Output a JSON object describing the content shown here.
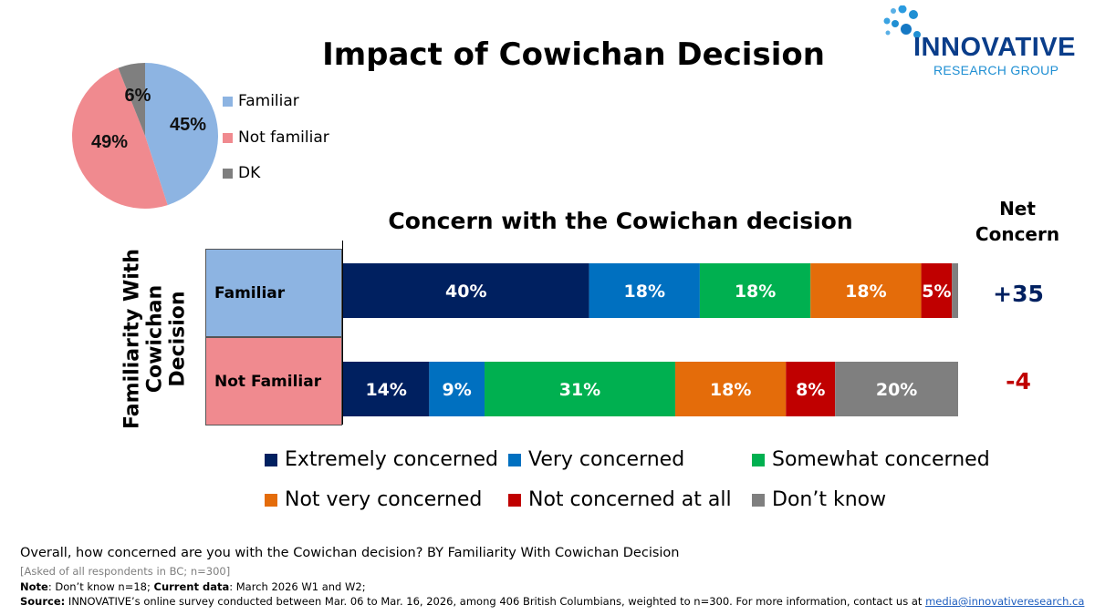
{
  "title": "Impact of Cowichan Decision",
  "logo": {
    "word": "INNOVATIVE",
    "sub": "RESEARCH GROUP"
  },
  "colors": {
    "extremely": "#002060",
    "very": "#0070c0",
    "somewhat": "#00b050",
    "not_very": "#e46c0a",
    "not_at_all": "#c00000",
    "dont_know": "#7f7f7f",
    "familiar": "#8db4e2",
    "not_familiar": "#f08a8f",
    "dk": "#7f7f7f",
    "net_positive": "#002060",
    "net_negative": "#c00000"
  },
  "chart_data": [
    {
      "type": "pie",
      "slices": [
        {
          "label": "Familiar",
          "value": 45,
          "display": "45%",
          "color": "#8db4e2"
        },
        {
          "label": "Not familiar",
          "value": 49,
          "display": "49%",
          "color": "#f08a8f"
        },
        {
          "label": "DK",
          "value": 6,
          "display": "6%",
          "color": "#7f7f7f"
        }
      ],
      "legend_placement": "right"
    },
    {
      "type": "bar",
      "orientation": "horizontal",
      "stacked": true,
      "title": "Concern with the Cowichan decision",
      "ylabel": "Familiarity With Cowichan Decision",
      "categories": [
        "Familiar",
        "Not Familiar"
      ],
      "series": [
        {
          "name": "Extremely concerned",
          "values": [
            40,
            14
          ],
          "labels": [
            "40%",
            "14%"
          ],
          "color": "#002060"
        },
        {
          "name": "Very concerned",
          "values": [
            18,
            9
          ],
          "labels": [
            "18%",
            "9%"
          ],
          "color": "#0070c0"
        },
        {
          "name": "Somewhat concerned",
          "values": [
            18,
            31
          ],
          "labels": [
            "18%",
            "31%"
          ],
          "color": "#00b050"
        },
        {
          "name": "Not very concerned",
          "values": [
            18,
            18
          ],
          "labels": [
            "18%",
            "18%"
          ],
          "color": "#e46c0a"
        },
        {
          "name": "Not concerned at all",
          "values": [
            5,
            8
          ],
          "labels": [
            "5%",
            "8%"
          ],
          "color": "#c00000"
        },
        {
          "name": "Don’t know",
          "values": [
            1,
            20
          ],
          "labels": [
            "",
            "20%"
          ],
          "color": "#7f7f7f"
        }
      ],
      "net_title_line1": "Net",
      "net_title_line2": "Concern",
      "net": [
        "+35",
        "-4"
      ],
      "legend_placement": "bottom"
    }
  ],
  "footer": {
    "question": "Overall, how concerned are you with the Cowichan decision? BY Familiarity With Cowichan Decision",
    "asked": "[Asked of all respondents in BC; n=300]",
    "note_label": "Note",
    "note_text": ": Don’t know n=18; ",
    "current_label": "Current data",
    "current_text": ": March 2026 W1 and W2;",
    "source_label": "Source:",
    "source_text": " INNOVATIVE’s online survey conducted between Mar. 06 to Mar. 16, 2026, among 406 British Columbians, weighted to n=300. For more information, contact us at ",
    "source_email": "media@innovativeresearch.ca"
  }
}
